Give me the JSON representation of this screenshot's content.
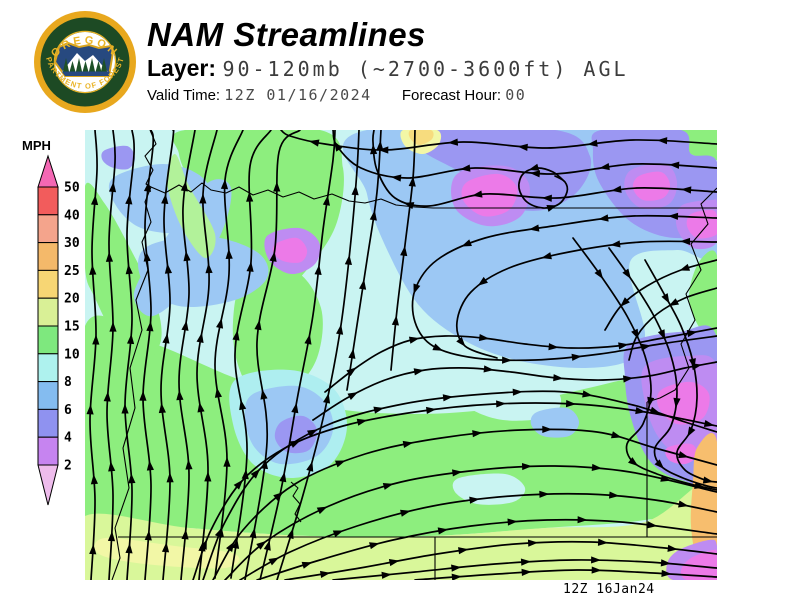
{
  "header": {
    "title": "NAM Streamlines",
    "layer_label": "Layer:",
    "layer_value": "90-120mb (~2700-3600ft) AGL",
    "valid_time_label": "Valid Time:",
    "valid_time_value": "12Z 01/16/2024",
    "forecast_hour_label": "Forecast Hour:",
    "forecast_hour_value": "00"
  },
  "logo": {
    "arc_top_text": "OREGON",
    "arc_bottom_text": "DEPARTMENT OF FORESTRY",
    "colors": {
      "outer_ring": "#e8a81e",
      "inner_ring": "#1d4a24",
      "field": "#ffffff",
      "emblem_navy": "#27497f",
      "emblem_green": "#1e5128",
      "text_gold": "#eab427",
      "emblem_border": "#d9a520"
    }
  },
  "legend": {
    "units_label": "MPH",
    "tick_labels": [
      "50",
      "40",
      "30",
      "25",
      "20",
      "15",
      "10",
      "8",
      "6",
      "4",
      "2"
    ],
    "band_colors": [
      "#f25c5c",
      "#f4a48c",
      "#f4b96a",
      "#f7d674",
      "#d9f096",
      "#7ee87e",
      "#aef2ee",
      "#84bcf0",
      "#8f92f0",
      "#c684f0"
    ],
    "arrow_top_color": "#f468b4",
    "arrow_bottom_color": "#eebcec"
  },
  "map": {
    "stamp": "12Z 16Jan24",
    "stroke_color": "#000000",
    "palette": {
      "pale_cyan": "#c9f4f2",
      "cyan": "#aeeef0",
      "light_blue": "#9cc8f4",
      "blue_violet": "#9b97f2",
      "violet": "#be8cf2",
      "magenta": "#ec7ae8",
      "green": "#8dee7e",
      "light_green": "#b2f29a",
      "yellow_green": "#d9f79a",
      "pale_yellow": "#f2f7a6",
      "gold": "#f7dc7e",
      "orange": "#f7be6e"
    }
  }
}
